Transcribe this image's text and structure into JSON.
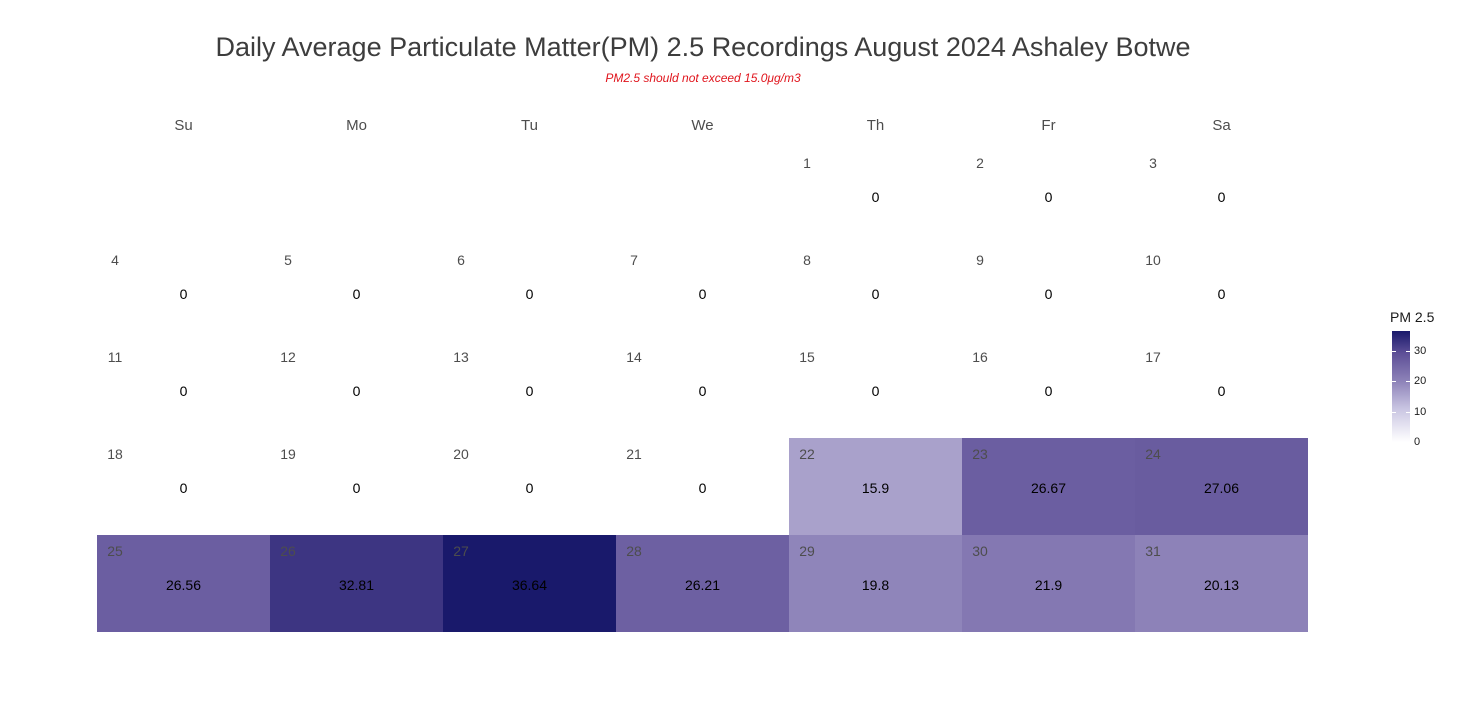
{
  "title": "Daily Average Particulate Matter(PM) 2.5 Recordings August 2024 Ashaley Botwe",
  "subtitle": "PM2.5 should not exceed 15.0μg/m3",
  "chart_data": {
    "type": "heatmap",
    "title": "Daily Average Particulate Matter(PM) 2.5 Recordings August 2024 Ashaley Botwe",
    "subtitle": "PM2.5 should not exceed 15.0μg/m3",
    "weekdays": [
      "Su",
      "Mo",
      "Tu",
      "We",
      "Th",
      "Fr",
      "Sa"
    ],
    "month": "August 2024",
    "first_weekday_index": 4,
    "days": [
      1,
      2,
      3,
      4,
      5,
      6,
      7,
      8,
      9,
      10,
      11,
      12,
      13,
      14,
      15,
      16,
      17,
      18,
      19,
      20,
      21,
      22,
      23,
      24,
      25,
      26,
      27,
      28,
      29,
      30,
      31
    ],
    "labels": [
      "0",
      "0",
      "0",
      "0",
      "0",
      "0",
      "0",
      "0",
      "0",
      "0",
      "0",
      "0",
      "0",
      "0",
      "0",
      "0",
      "0",
      "0",
      "0",
      "0",
      "0",
      "15.9",
      "26.67",
      "27.06",
      "26.56",
      "32.81",
      "36.64",
      "26.21",
      "19.8",
      "21.9",
      "20.13"
    ],
    "values": [
      0,
      0,
      0,
      0,
      0,
      0,
      0,
      0,
      0,
      0,
      0,
      0,
      0,
      0,
      0,
      0,
      0,
      0,
      0,
      0,
      0,
      15.9,
      26.67,
      27.06,
      26.56,
      32.81,
      36.64,
      26.21,
      19.8,
      21.9,
      20.13
    ],
    "legend_title": "PM 2.5",
    "legend_ticks": [
      0,
      10,
      20,
      30
    ],
    "color_range": [
      0,
      36.64
    ],
    "colors": {
      "low": "#ffffff",
      "high": "#19196b"
    }
  }
}
